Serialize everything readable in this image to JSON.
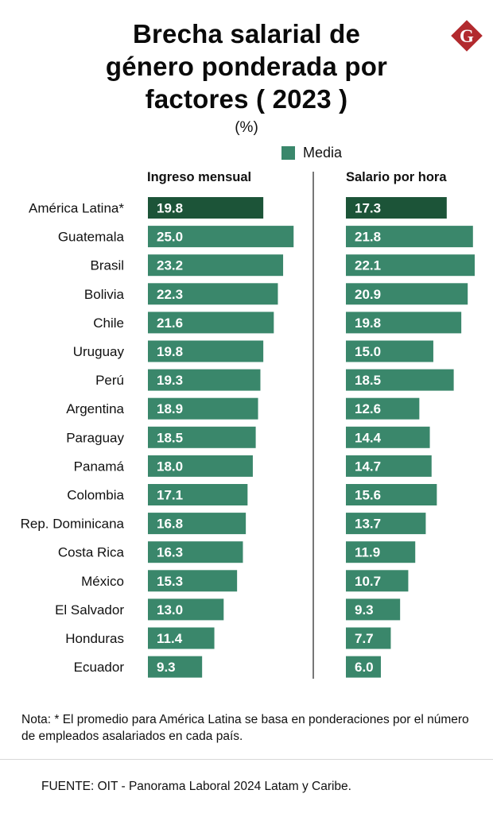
{
  "header": {
    "title_lines": [
      "Brecha salarial de",
      "género ponderada por",
      "factores ( 2023 )"
    ],
    "unit": "(%)",
    "logo_letter": "G"
  },
  "legend": {
    "label": "Media"
  },
  "colors": {
    "bar": "#3a876b",
    "bar_highlight": "#1c5438",
    "logo": "#b22a2e",
    "divider": "#777777"
  },
  "footer": {
    "note": "Nota: * El promedio para América Latina se basa en ponderaciones por el número de empleados asalariados en cada país.",
    "source": "FUENTE: OIT - Panorama Laboral 2024 Latam y Caribe."
  },
  "chart_data": {
    "type": "bar",
    "orientation": "horizontal",
    "title": "Brecha salarial de género ponderada por factores ( 2023 )",
    "subtitle": "(%)",
    "xlabel": "",
    "ylabel": "",
    "legend": [
      "Media"
    ],
    "legend_position": "top-right",
    "grid": false,
    "xlim": [
      0,
      25
    ],
    "categories": [
      "América Latina*",
      "Guatemala",
      "Brasil",
      "Bolivia",
      "Chile",
      "Uruguay",
      "Perú",
      "Argentina",
      "Paraguay",
      "Panamá",
      "Colombia",
      "Rep. Dominicana",
      "Costa Rica",
      "México",
      "El Salvador",
      "Honduras",
      "Ecuador"
    ],
    "highlight_index": 0,
    "series": [
      {
        "name": "Ingreso mensual",
        "values": [
          19.8,
          25.0,
          23.2,
          22.3,
          21.6,
          19.8,
          19.3,
          18.9,
          18.5,
          18.0,
          17.1,
          16.8,
          16.3,
          15.3,
          13.0,
          11.4,
          9.3
        ]
      },
      {
        "name": "Salario por hora",
        "values": [
          17.3,
          21.8,
          22.1,
          20.9,
          19.8,
          15.0,
          18.5,
          12.6,
          14.4,
          14.7,
          15.6,
          13.7,
          11.9,
          10.7,
          9.3,
          7.7,
          6.0
        ]
      }
    ]
  }
}
